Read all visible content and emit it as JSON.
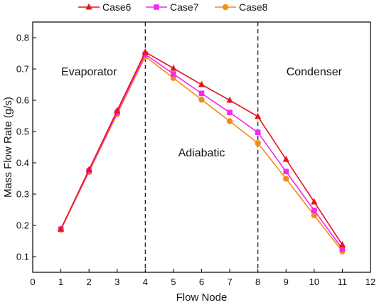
{
  "chart_data": {
    "type": "line",
    "xlabel": "Flow Node",
    "ylabel": "Mass Flow Rate (g/s)",
    "xlim": [
      0,
      12
    ],
    "ylim": [
      0.05,
      0.85
    ],
    "xticks": [
      0,
      1,
      2,
      3,
      4,
      5,
      6,
      7,
      8,
      9,
      10,
      11,
      12
    ],
    "yticks": [
      0.1,
      0.2,
      0.3,
      0.4,
      0.5,
      0.6,
      0.7,
      0.8
    ],
    "grid": false,
    "legend_position": "top",
    "vertical_lines": [
      4,
      8
    ],
    "annotations": [
      {
        "text": "Evaporator",
        "x": 2.0,
        "y": 0.68
      },
      {
        "text": "Adiabatic",
        "x": 6.0,
        "y": 0.42
      },
      {
        "text": "Condenser",
        "x": 10.0,
        "y": 0.68
      }
    ],
    "x": [
      1,
      2,
      3,
      4,
      5,
      6,
      7,
      8,
      9,
      10,
      11
    ],
    "series": [
      {
        "name": "Case6",
        "color": "#e8141f",
        "marker": "triangle",
        "values": [
          0.188,
          0.378,
          0.567,
          0.754,
          0.702,
          0.65,
          0.6,
          0.548,
          0.411,
          0.275,
          0.138
        ]
      },
      {
        "name": "Case7",
        "color": "#f02af0",
        "marker": "square",
        "values": [
          0.188,
          0.374,
          0.561,
          0.747,
          0.684,
          0.622,
          0.561,
          0.497,
          0.372,
          0.248,
          0.125
        ]
      },
      {
        "name": "Case8",
        "color": "#f58c14",
        "marker": "circle",
        "values": [
          0.186,
          0.371,
          0.556,
          0.74,
          0.671,
          0.602,
          0.533,
          0.463,
          0.349,
          0.232,
          0.117
        ]
      }
    ]
  }
}
